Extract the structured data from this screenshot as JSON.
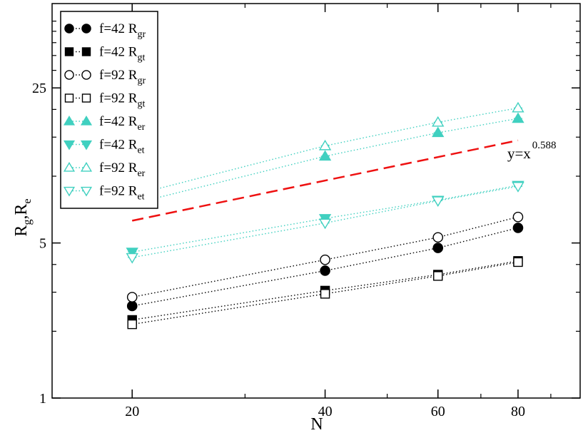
{
  "chart_data": {
    "type": "line",
    "xlabel": "N",
    "ylabel_main": "R",
    "ylabel_sub1": "g",
    "ylabel_sep": ",",
    "ylabel_sub2": "e",
    "xscale": "log",
    "yscale": "log",
    "xlim": [
      15,
      100
    ],
    "ylim": [
      1,
      60
    ],
    "xticks": [
      20,
      40,
      60,
      80
    ],
    "xtick_labels": [
      "20",
      "40",
      "60",
      "80"
    ],
    "yticks": [
      1,
      5,
      25
    ],
    "ytick_labels": [
      "1",
      "5",
      "25"
    ],
    "grid": false,
    "legend_position": "top-left",
    "series": [
      {
        "label_main": "f=42 R",
        "label_sub": "gr",
        "marker": "circle",
        "filled": true,
        "color": "#000000",
        "x": [
          20,
          40,
          60,
          80
        ],
        "y": [
          2.6,
          3.75,
          4.75,
          5.85
        ]
      },
      {
        "label_main": "f=42 R",
        "label_sub": "gt",
        "marker": "square",
        "filled": true,
        "color": "#000000",
        "x": [
          20,
          40,
          60,
          80
        ],
        "y": [
          2.25,
          3.05,
          3.6,
          4.15
        ]
      },
      {
        "label_main": "f=92 R",
        "label_sub": "gr",
        "marker": "circle",
        "filled": false,
        "color": "#000000",
        "x": [
          20,
          40,
          60,
          80
        ],
        "y": [
          2.85,
          4.2,
          5.3,
          6.55
        ]
      },
      {
        "label_main": "f=92 R",
        "label_sub": "gt",
        "marker": "square",
        "filled": false,
        "color": "#000000",
        "x": [
          20,
          40,
          60,
          80
        ],
        "y": [
          2.15,
          2.95,
          3.55,
          4.1
        ]
      },
      {
        "label_main": "f=42 R",
        "label_sub": "er",
        "marker": "triangle-up",
        "filled": true,
        "color": "#40d0c0",
        "x": [
          20,
          40,
          60,
          80
        ],
        "y": [
          7.5,
          12.3,
          15.7,
          18.2
        ]
      },
      {
        "label_main": "f=42 R",
        "label_sub": "et",
        "marker": "triangle-down",
        "filled": true,
        "color": "#40d0c0",
        "x": [
          20,
          40,
          60,
          80
        ],
        "y": [
          4.55,
          6.45,
          7.8,
          9.1
        ]
      },
      {
        "label_main": "f=92 R",
        "label_sub": "er",
        "marker": "triangle-up",
        "filled": false,
        "color": "#40d0c0",
        "x": [
          20,
          40,
          60,
          80
        ],
        "y": [
          8.2,
          13.7,
          17.5,
          20.3
        ]
      },
      {
        "label_main": "f=92 R",
        "label_sub": "et",
        "marker": "triangle-down",
        "filled": false,
        "color": "#40d0c0",
        "x": [
          20,
          40,
          60,
          80
        ],
        "y": [
          4.3,
          6.15,
          7.75,
          9.0
        ]
      }
    ],
    "reference_line": {
      "label_main": "y=x",
      "label_sup": "0.588",
      "color": "#ee1111",
      "x": [
        20,
        80
      ],
      "y": [
        6.3,
        14.5
      ]
    }
  }
}
